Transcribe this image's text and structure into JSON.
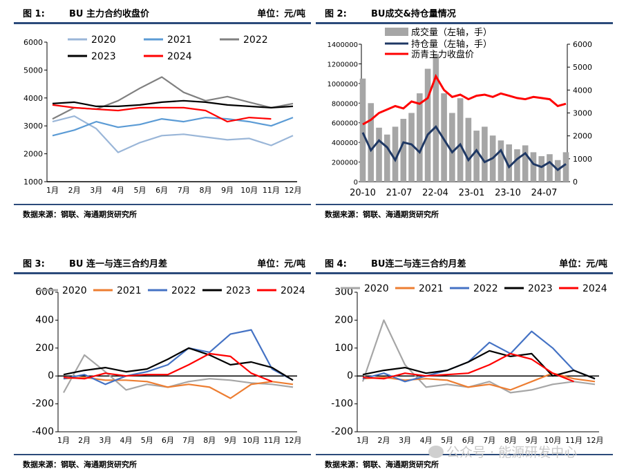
{
  "source_note": "数据来源：钢联、海通期货研究所",
  "watermark": "公众号 · 能源研发中心",
  "months": [
    "1月",
    "2月",
    "3月",
    "4月",
    "5月",
    "6月",
    "7月",
    "8月",
    "9月",
    "10月",
    "11月",
    "12月"
  ],
  "colors": {
    "2020": "#9ab6d8",
    "2021": "#5b9bd5",
    "2022": "#808080",
    "2023": "#000000",
    "2024": "#ff0000"
  },
  "spread_colors": {
    "2020": "#a6a6a6",
    "2021": "#ed7d31",
    "2022": "#4472c4",
    "2023": "#000000",
    "2024": "#ff0000"
  },
  "chart_data": [
    {
      "fig": "图 1:",
      "title": "BU 主力合约收盘价",
      "unit": "单位：元/吨",
      "type": "line",
      "ylim": [
        1000,
        6000
      ],
      "yticks": [
        1000,
        2000,
        3000,
        4000,
        5000,
        6000
      ],
      "legend_placement": "top-left",
      "series": [
        {
          "name": "2020",
          "values": [
            3150,
            3350,
            2900,
            2050,
            2400,
            2650,
            2700,
            2600,
            2500,
            2550,
            2300,
            2650
          ]
        },
        {
          "name": "2021",
          "values": [
            2650,
            2850,
            3150,
            2950,
            3050,
            3250,
            3150,
            3300,
            3250,
            3150,
            3000,
            3300
          ]
        },
        {
          "name": "2022",
          "values": [
            3250,
            3650,
            3600,
            3900,
            4350,
            4750,
            4200,
            3900,
            4050,
            3850,
            3650,
            3800
          ]
        },
        {
          "name": "2023",
          "values": [
            3800,
            3850,
            3700,
            3700,
            3750,
            3850,
            3900,
            3850,
            3750,
            3700,
            3650,
            3700
          ]
        },
        {
          "name": "2024",
          "values": [
            3750,
            3650,
            3600,
            3550,
            3650,
            3650,
            3650,
            3550,
            3150,
            3300,
            3250,
            null
          ]
        }
      ]
    },
    {
      "fig": "图 2:",
      "title": "BU成交&持仓量情况",
      "unit": "",
      "type": "bar+line",
      "x_labels": [
        "20-10",
        "21-07",
        "22-04",
        "23-01",
        "23-10",
        "24-07"
      ],
      "ylim_left": [
        0,
        1400000
      ],
      "yticks_left": [
        0,
        200000,
        400000,
        600000,
        800000,
        1000000,
        1200000,
        1400000
      ],
      "ylim_right": [
        0,
        6000
      ],
      "yticks_right": [
        0,
        1000,
        2000,
        3000,
        4000,
        5000,
        6000
      ],
      "legend_placement": "top-left",
      "series": [
        {
          "name": "成交量（左轴，手）",
          "axis": "left",
          "kind": "bar",
          "values": [
            1050000,
            800000,
            550000,
            480000,
            560000,
            640000,
            700000,
            900000,
            1150000,
            1300000,
            900000,
            700000,
            850000,
            650000,
            520000,
            560000,
            470000,
            420000,
            380000,
            330000,
            370000,
            300000,
            260000,
            280000,
            220000,
            300000
          ]
        },
        {
          "name": "持仓量（左轴，手）",
          "axis": "left",
          "kind": "line",
          "values": [
            500000,
            320000,
            420000,
            350000,
            220000,
            400000,
            380000,
            300000,
            480000,
            560000,
            430000,
            300000,
            380000,
            220000,
            320000,
            200000,
            240000,
            320000,
            150000,
            230000,
            290000,
            180000,
            150000,
            200000,
            120000,
            180000
          ]
        },
        {
          "name": "沥青主力收盘价",
          "axis": "right",
          "kind": "line",
          "values": [
            2500,
            2700,
            3000,
            3150,
            3300,
            3200,
            3500,
            3400,
            3650,
            4600,
            4000,
            3700,
            3800,
            3600,
            3750,
            3800,
            3700,
            3850,
            3750,
            3650,
            3600,
            3700,
            3650,
            3600,
            3300,
            3400
          ]
        }
      ]
    },
    {
      "fig": "图 3:",
      "title": "BU 连一与连三合约月差",
      "unit": "单位：元/吨",
      "type": "line",
      "ylim": [
        -400,
        600
      ],
      "yticks": [
        -400,
        -200,
        0,
        200,
        400,
        600
      ],
      "legend_placement": "top",
      "series": [
        {
          "name": "2020",
          "values": [
            -120,
            150,
            30,
            -100,
            -60,
            -80,
            -40,
            -20,
            -30,
            -50,
            -60,
            -80
          ]
        },
        {
          "name": "2021",
          "values": [
            -20,
            -10,
            -30,
            -30,
            -40,
            -80,
            -60,
            -80,
            -160,
            -60,
            -40,
            -60
          ]
        },
        {
          "name": "2022",
          "values": [
            -20,
            10,
            -60,
            0,
            30,
            80,
            200,
            170,
            300,
            330,
            50,
            -30
          ]
        },
        {
          "name": "2023",
          "values": [
            10,
            40,
            60,
            30,
            50,
            120,
            200,
            150,
            80,
            100,
            60,
            -30
          ]
        },
        {
          "name": "2024",
          "values": [
            -10,
            -20,
            20,
            0,
            10,
            10,
            80,
            160,
            140,
            20,
            -40,
            null
          ]
        }
      ]
    },
    {
      "fig": "图 4:",
      "title": "BU连二与连三合约月差",
      "unit": "单位：元/吨",
      "type": "line",
      "ylim": [
        -200,
        300
      ],
      "yticks": [
        -200,
        -100,
        0,
        100,
        200,
        300
      ],
      "legend_placement": "top",
      "series": [
        {
          "name": "2020",
          "values": [
            -20,
            200,
            40,
            -40,
            -30,
            -40,
            -20,
            -60,
            -50,
            -30,
            -20,
            -30
          ]
        },
        {
          "name": "2021",
          "values": [
            -10,
            -5,
            -15,
            -10,
            -15,
            -40,
            -30,
            -50,
            -20,
            10,
            -10,
            -20
          ]
        },
        {
          "name": "2022",
          "values": [
            -10,
            10,
            -20,
            0,
            20,
            50,
            120,
            80,
            160,
            100,
            20,
            -10
          ]
        },
        {
          "name": "2023",
          "values": [
            5,
            20,
            30,
            10,
            20,
            50,
            90,
            70,
            80,
            0,
            20,
            -10
          ]
        },
        {
          "name": "2024",
          "values": [
            -5,
            -10,
            10,
            0,
            5,
            10,
            40,
            80,
            60,
            10,
            -20,
            null
          ]
        }
      ]
    }
  ]
}
